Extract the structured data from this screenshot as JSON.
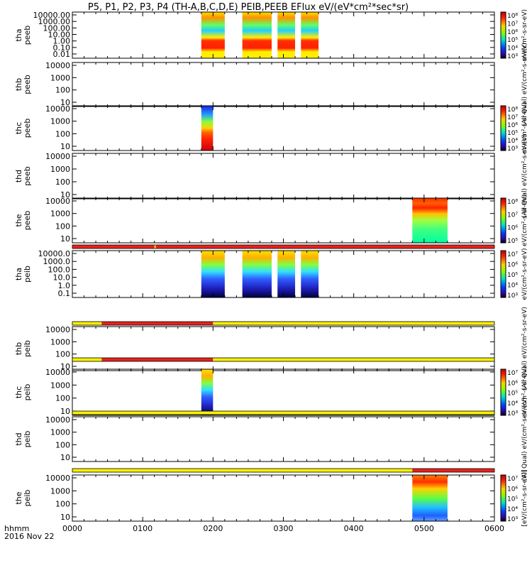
{
  "title": "P5, P1, P2, P3, P4 (TH-A,B,C,D,E) PEIB,PEEB EFlux eV/(eV*cm²*sec*sr)",
  "time_axis": {
    "label_left": "hhmm",
    "date": "2016 Nov 22",
    "ticks": [
      "0000",
      "0100",
      "0200",
      "0300",
      "0400",
      "0500",
      "0600"
    ]
  },
  "chart_data": [
    {
      "type": "heatmap",
      "probe": "tha",
      "product": "peeb",
      "ylabel": [
        "tha",
        "peeb"
      ],
      "y_log": true,
      "ylim": [
        0.01,
        30000
      ],
      "y_ticks": [
        "10000.00",
        "1000.00",
        "100.00",
        "10.00",
        "1.00",
        "0.10",
        "0.01"
      ],
      "data_intervals_hhmm": [
        [
          "0150",
          "0210"
        ],
        [
          "0225",
          "0250"
        ],
        [
          "0255",
          "0310"
        ],
        [
          "0315",
          "0330"
        ]
      ],
      "colorbar": {
        "ticks": [
          "10⁸",
          "10⁷",
          "10⁶",
          "10⁵",
          "10⁴",
          "10³"
        ],
        "label": "eV/(cm²-s-sr-eV)"
      }
    },
    {
      "type": "heatmap",
      "probe": "thb",
      "product": "peeb",
      "ylabel": [
        "thb",
        "peeb"
      ],
      "y_log": true,
      "ylim": [
        5,
        30000
      ],
      "y_ticks": [
        "10000",
        "1000",
        "100",
        "10"
      ],
      "data_intervals_hhmm": [],
      "colorbar": {
        "ticks": [],
        "label": "(All Qual) eV/(cm²-s-sr-eV)"
      }
    },
    {
      "type": "heatmap",
      "probe": "thc",
      "product": "peeb",
      "ylabel": [
        "thc",
        "peeb"
      ],
      "y_log": true,
      "ylim": [
        5,
        30000
      ],
      "y_ticks": [
        "10000",
        "1000",
        "100",
        "10"
      ],
      "data_intervals_hhmm": [
        [
          "0150",
          "0200"
        ]
      ],
      "colorbar": {
        "ticks": [
          "10⁸",
          "10⁷",
          "10⁶",
          "10⁵",
          "10⁴",
          "10³"
        ],
        "label": "eV/(cm²-s-sr-eV)"
      }
    },
    {
      "type": "heatmap",
      "probe": "thd",
      "product": "peeb",
      "ylabel": [
        "thd",
        "peeb"
      ],
      "y_log": true,
      "ylim": [
        5,
        30000
      ],
      "y_ticks": [
        "10000",
        "1000",
        "100",
        "10"
      ],
      "data_intervals_hhmm": [],
      "colorbar": {
        "ticks": [],
        "label": "(All Qual) eV/(cm²-s-sr-eV)"
      }
    },
    {
      "type": "heatmap",
      "probe": "the",
      "product": "peeb",
      "ylabel": [
        "the",
        "peeb"
      ],
      "y_log": true,
      "ylim": [
        5,
        30000
      ],
      "y_ticks": [
        "10000",
        "1000",
        "100",
        "10"
      ],
      "data_intervals_hhmm": [
        [
          "0450",
          "0520"
        ]
      ],
      "colorbar": {
        "ticks": [
          "10⁸",
          "10⁷",
          "10⁶",
          "10⁵"
        ],
        "label": "eV/(cm²-s-sr-eV)"
      }
    },
    {
      "type": "heatmap",
      "probe": "tha",
      "product": "peib",
      "ylabel": [
        "tha",
        "peib"
      ],
      "y_log": true,
      "ylim": [
        0.1,
        30000
      ],
      "y_ticks": [
        "10000.0",
        "1000.0",
        "100.0",
        "10.0",
        "1.0",
        "0.1"
      ],
      "data_intervals_hhmm": [
        [
          "0150",
          "0210"
        ],
        [
          "0225",
          "0250"
        ],
        [
          "0255",
          "0310"
        ],
        [
          "0315",
          "0330"
        ]
      ],
      "colorbar": {
        "ticks": [
          "10⁷",
          "10⁶",
          "10⁵",
          "10⁴",
          "10³"
        ],
        "label": "eV/(cm²-s-sr-eV)"
      }
    },
    {
      "type": "heatmap",
      "probe": "thb",
      "product": "peib",
      "ylabel": [
        "thb",
        "peib"
      ],
      "y_log": true,
      "ylim": [
        5,
        30000
      ],
      "y_ticks": [
        "10000",
        "1000",
        "100",
        "10"
      ],
      "data_intervals_hhmm": [],
      "colorbar": {
        "ticks": [],
        "label": "(All Qual) eV/(cm²-s-sr-eV)"
      }
    },
    {
      "type": "heatmap",
      "probe": "thc",
      "product": "peib",
      "ylabel": [
        "thc",
        "peib"
      ],
      "y_log": true,
      "ylim": [
        5,
        30000
      ],
      "y_ticks": [
        "10000",
        "1000",
        "100",
        "10"
      ],
      "data_intervals_hhmm": [
        [
          "0150",
          "0200"
        ]
      ],
      "colorbar": {
        "ticks": [
          "10⁷",
          "10⁶",
          "10⁵",
          "10⁴",
          "10³"
        ],
        "label": "eV/(cm²-s-sr-eV)"
      }
    },
    {
      "type": "heatmap",
      "probe": "thd",
      "product": "peib",
      "ylabel": [
        "thd",
        "peib"
      ],
      "y_log": true,
      "ylim": [
        5,
        30000
      ],
      "y_ticks": [
        "10000",
        "1000",
        "100",
        "10"
      ],
      "data_intervals_hhmm": [],
      "colorbar": {
        "ticks": [],
        "label": "(All Qual) eV/(cm²-s-sr-eV)"
      }
    },
    {
      "type": "heatmap",
      "probe": "the",
      "product": "peib",
      "ylabel": [
        "the",
        "peib"
      ],
      "y_log": true,
      "ylim": [
        5,
        30000
      ],
      "y_ticks": [
        "10000",
        "1000",
        "100",
        "10"
      ],
      "data_intervals_hhmm": [
        [
          "0450",
          "0520"
        ]
      ],
      "colorbar": {
        "ticks": [
          "10⁷",
          "10⁶",
          "10⁵",
          "10⁴",
          "10³"
        ],
        "label": "[eV/(cm²-s-sr-eV)]"
      }
    }
  ],
  "flag_bars": [
    {
      "before_panel": 5,
      "segments": [
        {
          "from": "0000",
          "to": "0600",
          "color": "red"
        }
      ],
      "marks": [
        {
          "at": "0110",
          "color": "yellow"
        }
      ]
    },
    {
      "before_panel": 6,
      "segments": [
        {
          "from": "0000",
          "to": "0025",
          "color": "yellow"
        },
        {
          "from": "0025",
          "to": "0200",
          "color": "red"
        },
        {
          "from": "0200",
          "to": "0600",
          "color": "yellow"
        }
      ],
      "marks": []
    },
    {
      "before_panel": 7,
      "segments": [
        {
          "from": "0000",
          "to": "0025",
          "color": "yellow"
        },
        {
          "from": "0025",
          "to": "0200",
          "color": "red"
        },
        {
          "from": "0200",
          "to": "0600",
          "color": "yellow"
        }
      ],
      "marks": []
    },
    {
      "before_panel": 8,
      "segments": [
        {
          "from": "0000",
          "to": "0600",
          "color": "yellow"
        }
      ],
      "marks": []
    },
    {
      "before_panel": 9,
      "segments": [
        {
          "from": "0000",
          "to": "0450",
          "color": "yellow"
        },
        {
          "from": "0450",
          "to": "0600",
          "color": "red"
        }
      ],
      "marks": []
    }
  ],
  "colors": {
    "red": "#e8221c",
    "yellow": "#f7f000",
    "black": "#000000"
  }
}
